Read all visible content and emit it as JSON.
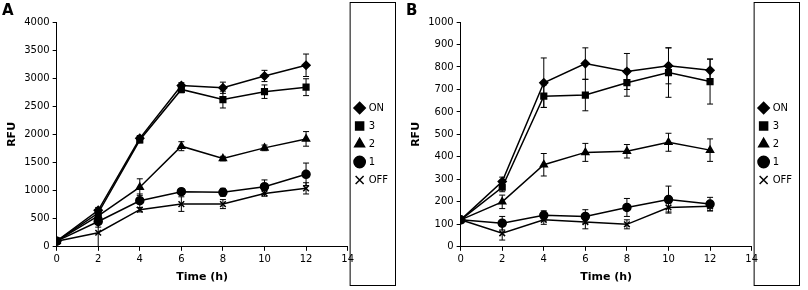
{
  "chart_data": [
    {
      "type": "line",
      "title": "A",
      "x_label": "Time (h)",
      "y_label": "RFU",
      "x": [
        0,
        2,
        4,
        6,
        8,
        10,
        12
      ],
      "xlim": [
        0,
        14
      ],
      "xticks": [
        0,
        2,
        4,
        6,
        8,
        10,
        12,
        14
      ],
      "ylim": [
        0,
        4000
      ],
      "yticks": [
        0,
        500,
        1000,
        1500,
        2000,
        2500,
        3000,
        3500,
        4000
      ],
      "grid": false,
      "legend": "right",
      "series": [
        {
          "name": "ON",
          "color": "#000000",
          "marker": "diamond",
          "values": [
            100,
            650,
            1930,
            2870,
            2830,
            3040,
            3230
          ],
          "errors": [
            0,
            50,
            50,
            50,
            100,
            100,
            200
          ]
        },
        {
          "name": "3",
          "color": "#000000",
          "marker": "square",
          "values": [
            100,
            600,
            1900,
            2800,
            2620,
            2760,
            2840
          ],
          "errors": [
            0,
            50,
            50,
            60,
            150,
            120,
            150
          ]
        },
        {
          "name": "2",
          "color": "#000000",
          "marker": "triangle",
          "values": [
            100,
            550,
            1060,
            1790,
            1570,
            1760,
            1920
          ],
          "errors": [
            0,
            50,
            150,
            80,
            40,
            50,
            130
          ]
        },
        {
          "name": "1",
          "color": "#000000",
          "marker": "circle",
          "values": [
            100,
            450,
            820,
            980,
            970,
            1070,
            1290
          ],
          "errors": [
            0,
            100,
            120,
            50,
            70,
            120,
            200
          ]
        },
        {
          "name": "OFF",
          "color": "#000000",
          "marker": "x",
          "values": [
            100,
            250,
            660,
            760,
            760,
            950,
            1040
          ],
          "errors": [
            0,
            250,
            40,
            130,
            80,
            50,
            100
          ]
        }
      ]
    },
    {
      "type": "line",
      "title": "B",
      "x_label": "Time (h)",
      "y_label": "RFU",
      "x": [
        0,
        2,
        4,
        6,
        8,
        10,
        12
      ],
      "xlim": [
        0,
        14
      ],
      "xticks": [
        0,
        2,
        4,
        6,
        8,
        10,
        12,
        14
      ],
      "ylim": [
        0,
        1000
      ],
      "yticks": [
        0,
        100,
        200,
        300,
        400,
        500,
        600,
        700,
        800,
        900,
        1000
      ],
      "grid": false,
      "legend": "right",
      "series": [
        {
          "name": "ON",
          "color": "#000000",
          "marker": "diamond",
          "values": [
            120,
            290,
            730,
            815,
            780,
            805,
            785
          ],
          "errors": [
            0,
            20,
            110,
            70,
            80,
            80,
            50
          ]
        },
        {
          "name": "3",
          "color": "#000000",
          "marker": "square",
          "values": [
            120,
            265,
            670,
            675,
            730,
            775,
            735
          ],
          "errors": [
            0,
            20,
            50,
            70,
            60,
            110,
            100
          ]
        },
        {
          "name": "2",
          "color": "#000000",
          "marker": "triangle",
          "values": [
            120,
            200,
            365,
            420,
            425,
            465,
            430
          ],
          "errors": [
            0,
            30,
            50,
            40,
            30,
            40,
            50
          ]
        },
        {
          "name": "1",
          "color": "#000000",
          "marker": "circle",
          "values": [
            120,
            105,
            140,
            135,
            175,
            210,
            190
          ],
          "errors": [
            0,
            30,
            20,
            30,
            40,
            60,
            30
          ]
        },
        {
          "name": "OFF",
          "color": "#000000",
          "marker": "x",
          "values": [
            120,
            60,
            120,
            110,
            100,
            175,
            180
          ],
          "errors": [
            0,
            30,
            20,
            30,
            20,
            20,
            20
          ]
        }
      ]
    }
  ]
}
